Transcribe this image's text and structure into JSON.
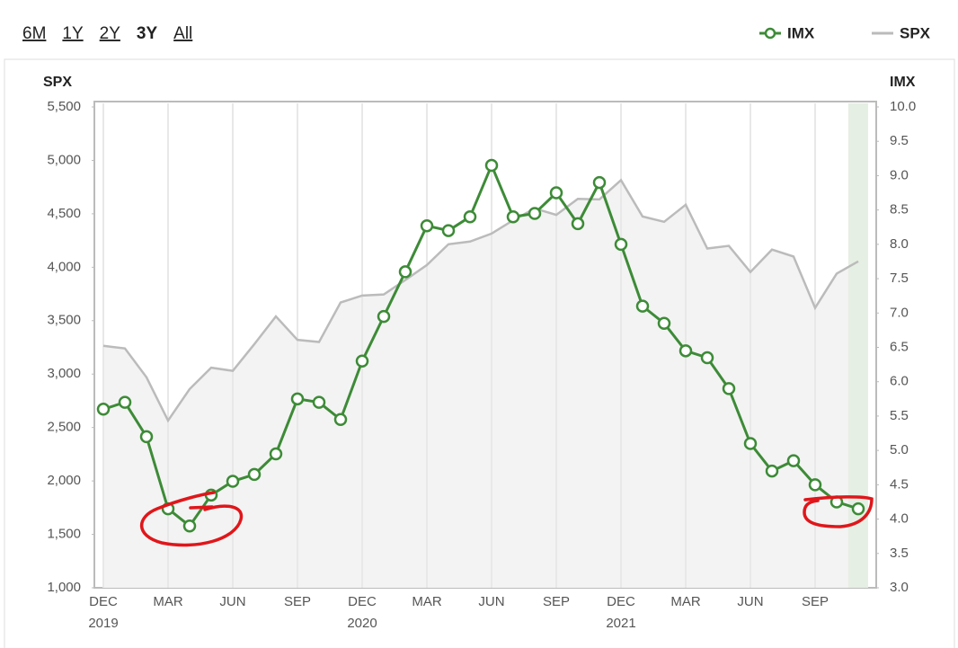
{
  "chart_data": {
    "type": "line",
    "range_buttons": [
      "6M",
      "1Y",
      "2Y",
      "3Y",
      "All"
    ],
    "selected_range": 3,
    "categories": [
      "DEC",
      null,
      null,
      "MAR",
      null,
      null,
      "JUN",
      null,
      null,
      "SEP",
      null,
      null,
      "DEC",
      null,
      null,
      "MAR",
      null,
      null,
      "JUN",
      null,
      null,
      "SEP",
      null,
      null,
      "DEC",
      null,
      null,
      "MAR",
      null,
      null,
      "JUN",
      null,
      null,
      "SEP",
      null,
      null
    ],
    "category_years": [
      "2019",
      null,
      null,
      null,
      null,
      null,
      null,
      null,
      null,
      null,
      null,
      null,
      "2020",
      null,
      null,
      null,
      null,
      null,
      null,
      null,
      null,
      null,
      null,
      null,
      "2021",
      null,
      null,
      null,
      null,
      null,
      null,
      null,
      null,
      null,
      null,
      null
    ],
    "y_label": "SPX",
    "y2_label": "IMX",
    "ylim": [
      1000,
      5500
    ],
    "yticks": [
      {
        "value": 1000,
        "label": "1,000"
      },
      {
        "value": 1500,
        "label": "1,500"
      },
      {
        "value": 2000,
        "label": "2,000"
      },
      {
        "value": 2500,
        "label": "2,500"
      },
      {
        "value": 3000,
        "label": "3,000"
      },
      {
        "value": 3500,
        "label": "3,500"
      },
      {
        "value": 4000,
        "label": "4,000"
      },
      {
        "value": 4500,
        "label": "4,500"
      },
      {
        "value": 5000,
        "label": "5,000"
      },
      {
        "value": 5500,
        "label": "5,500"
      }
    ],
    "y2lim": [
      3,
      10
    ],
    "y2ticks": [
      {
        "value": 3,
        "label": "3.0"
      },
      3.5,
      {
        "value": 4,
        "label": "4.0"
      },
      4.5,
      {
        "value": 5,
        "label": "5.0"
      },
      5.5,
      {
        "value": 6,
        "label": "6.0"
      },
      6.5,
      {
        "value": 7,
        "label": "7.0"
      },
      7.5,
      {
        "value": 8,
        "label": "8.0"
      },
      8.5,
      {
        "value": 9,
        "label": "9.0"
      },
      9.5,
      {
        "value": 10,
        "label": "10.0"
      }
    ],
    "grid": true,
    "legend": "top-right",
    "series": [
      {
        "name": "IMX",
        "color": "#3d8b37",
        "axis": "y2",
        "values": [
          5.6,
          5.7,
          5.2,
          4.15,
          3.9,
          4.35,
          4.55,
          4.65,
          4.95,
          5.75,
          5.7,
          5.45,
          6.3,
          6.95,
          7.6,
          8.27,
          8.2,
          8.4,
          9.15,
          8.4,
          8.45,
          8.75,
          8.3,
          8.9,
          8.0,
          7.1,
          6.85,
          6.45,
          6.35,
          5.9,
          5.1,
          4.7,
          4.85,
          4.5,
          4.25,
          4.15
        ]
      },
      {
        "name": "SPX",
        "color": "#bbbbbb",
        "values": [
          3265,
          3240,
          2970,
          2565,
          2860,
          3060,
          3030,
          3280,
          3540,
          3320,
          3300,
          3670,
          3735,
          3745,
          3880,
          4020,
          4215,
          4240,
          4315,
          4440,
          4550,
          4490,
          4640,
          4635,
          4815,
          4475,
          4425,
          4585,
          4175,
          4200,
          3955,
          4165,
          4100,
          3620,
          3940,
          4055
        ]
      }
    ]
  }
}
